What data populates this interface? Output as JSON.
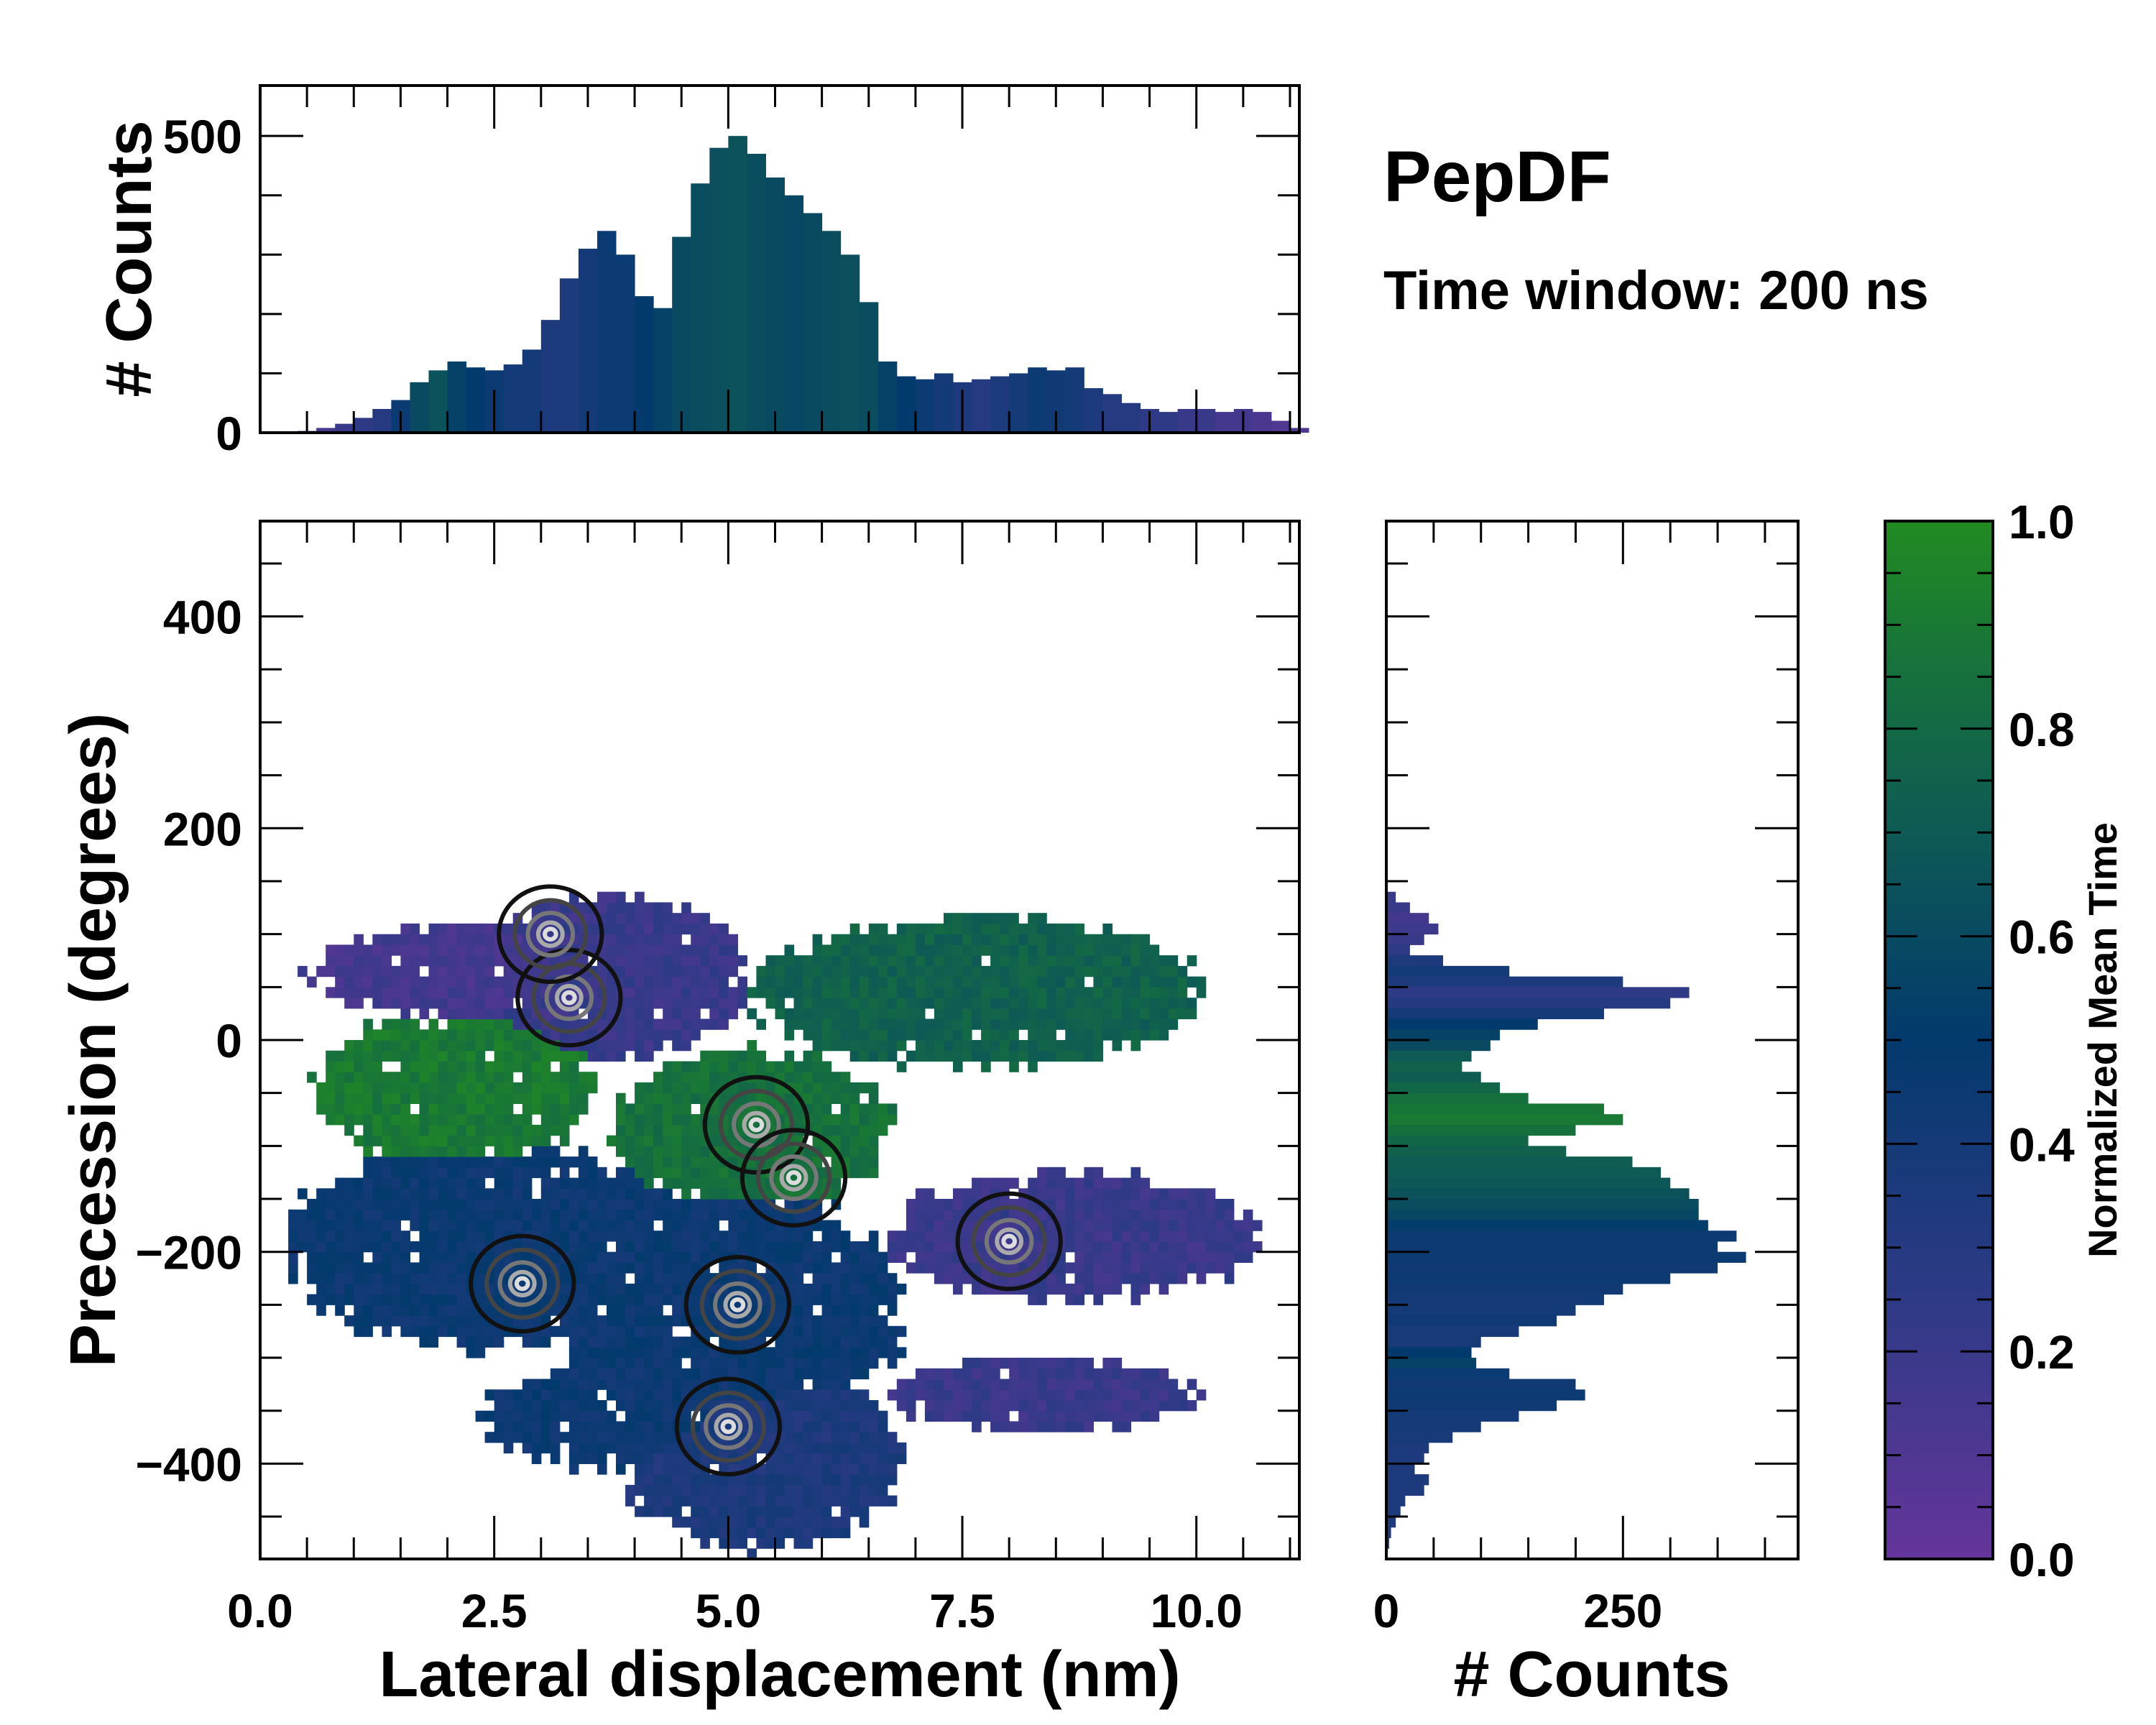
{
  "title": "PepDF",
  "subtitle": "Time window: 200 ns",
  "colors": {
    "colormap": [
      [
        0.0,
        "#65359a"
      ],
      [
        0.25,
        "#2e3a86"
      ],
      [
        0.5,
        "#033a6d"
      ],
      [
        0.7,
        "#0e5a55"
      ],
      [
        0.85,
        "#16703d"
      ],
      [
        1.0,
        "#228b22"
      ]
    ]
  },
  "chart_data": [
    {
      "type": "heatmap",
      "name": "main",
      "xlabel": "Lateral displacement (nm)",
      "ylabel": "Precession (degrees)",
      "xlim": [
        0,
        11.1
      ],
      "ylim": [
        -490,
        490
      ],
      "xticks": [
        "0.0",
        "2.5",
        "5.0",
        "7.5",
        "10.0"
      ],
      "xtick_values": [
        0,
        2.5,
        5,
        7.5,
        10
      ],
      "yticks": [
        "−400",
        "−200",
        "0",
        "200",
        "400"
      ],
      "ytick_values": [
        -400,
        -200,
        0,
        200,
        400
      ],
      "color_meaning": "Normalized Mean Time",
      "regions": [
        {
          "cx": 2.2,
          "cy": 60,
          "rx": 1.7,
          "ry": 45,
          "value": 0.15
        },
        {
          "cx": 3.7,
          "cy": 55,
          "rx": 1.5,
          "ry": 75,
          "value": 0.2
        },
        {
          "cx": 2.0,
          "cy": -50,
          "rx": 1.5,
          "ry": 75,
          "value": 0.9
        },
        {
          "cx": 7.6,
          "cy": 40,
          "rx": 2.4,
          "ry": 70,
          "value": 0.75
        },
        {
          "cx": 5.2,
          "cy": -90,
          "rx": 1.5,
          "ry": 75,
          "value": 0.85
        },
        {
          "cx": 2.4,
          "cy": -200,
          "rx": 2.2,
          "ry": 95,
          "value": 0.45
        },
        {
          "cx": 5.0,
          "cy": -260,
          "rx": 1.8,
          "ry": 120,
          "value": 0.45
        },
        {
          "cx": 8.6,
          "cy": -190,
          "rx": 2.0,
          "ry": 60,
          "value": 0.2
        },
        {
          "cx": 8.3,
          "cy": -340,
          "rx": 1.6,
          "ry": 35,
          "value": 0.2
        },
        {
          "cx": 5.3,
          "cy": -400,
          "rx": 1.5,
          "ry": 85,
          "value": 0.35
        },
        {
          "cx": 3.8,
          "cy": -360,
          "rx": 1.5,
          "ry": 50,
          "value": 0.45
        }
      ],
      "density_peaks": [
        {
          "x": 3.3,
          "y": 40
        },
        {
          "x": 3.1,
          "y": 100
        },
        {
          "x": 5.3,
          "y": -80
        },
        {
          "x": 5.7,
          "y": -130
        },
        {
          "x": 5.1,
          "y": -250
        },
        {
          "x": 5.0,
          "y": -365
        },
        {
          "x": 2.8,
          "y": -230
        },
        {
          "x": 8.0,
          "y": -190
        }
      ]
    },
    {
      "type": "bar",
      "name": "top-histogram",
      "ylabel": "# Counts",
      "xlim": [
        0,
        11.1
      ],
      "ylim": [
        0,
        585
      ],
      "yticks": [
        "0",
        "500"
      ],
      "ytick_values": [
        0,
        500
      ],
      "bin_width": 0.2,
      "x": [
        0.4,
        0.6,
        0.8,
        1.0,
        1.2,
        1.4,
        1.6,
        1.8,
        2.0,
        2.2,
        2.4,
        2.6,
        2.8,
        3.0,
        3.2,
        3.4,
        3.6,
        3.8,
        4.0,
        4.2,
        4.4,
        4.6,
        4.8,
        5.0,
        5.2,
        5.4,
        5.6,
        5.8,
        6.0,
        6.2,
        6.4,
        6.6,
        6.8,
        7.0,
        7.2,
        7.4,
        7.6,
        7.8,
        8.0,
        8.2,
        8.4,
        8.6,
        8.8,
        9.0,
        9.2,
        9.4,
        9.6,
        9.8,
        10.0,
        10.2,
        10.4,
        10.6,
        10.8,
        11.0
      ],
      "values": [
        3,
        8,
        15,
        25,
        40,
        55,
        85,
        105,
        120,
        110,
        105,
        115,
        140,
        190,
        260,
        310,
        340,
        300,
        230,
        210,
        330,
        420,
        480,
        500,
        470,
        430,
        400,
        370,
        340,
        300,
        220,
        120,
        95,
        90,
        100,
        85,
        90,
        95,
        100,
        110,
        105,
        110,
        75,
        65,
        50,
        40,
        35,
        40,
        40,
        35,
        40,
        35,
        20,
        8
      ],
      "mean_time": [
        0.1,
        0.15,
        0.2,
        0.25,
        0.3,
        0.45,
        0.6,
        0.65,
        0.55,
        0.5,
        0.45,
        0.4,
        0.4,
        0.35,
        0.35,
        0.4,
        0.45,
        0.45,
        0.5,
        0.55,
        0.6,
        0.62,
        0.64,
        0.65,
        0.62,
        0.6,
        0.58,
        0.6,
        0.62,
        0.64,
        0.62,
        0.55,
        0.5,
        0.45,
        0.4,
        0.35,
        0.3,
        0.35,
        0.4,
        0.45,
        0.42,
        0.4,
        0.35,
        0.3,
        0.3,
        0.25,
        0.25,
        0.2,
        0.2,
        0.15,
        0.15,
        0.12,
        0.1,
        0.1
      ]
    },
    {
      "type": "bar",
      "name": "right-histogram",
      "orientation": "horizontal",
      "xlabel": "# Counts",
      "xlim": [
        0,
        435
      ],
      "ylim": [
        -490,
        490
      ],
      "xticks": [
        "0",
        "250"
      ],
      "xtick_values": [
        0,
        250
      ],
      "bin_width": 10,
      "y": [
        130,
        120,
        110,
        100,
        90,
        80,
        70,
        60,
        50,
        40,
        30,
        20,
        10,
        0,
        -10,
        -20,
        -30,
        -40,
        -50,
        -60,
        -70,
        -80,
        -90,
        -100,
        -110,
        -120,
        -130,
        -140,
        -150,
        -160,
        -170,
        -180,
        -190,
        -200,
        -210,
        -220,
        -230,
        -240,
        -250,
        -260,
        -270,
        -280,
        -290,
        -300,
        -310,
        -320,
        -330,
        -340,
        -350,
        -360,
        -370,
        -380,
        -390,
        -400,
        -410,
        -420,
        -430,
        -440,
        -450,
        -460,
        -470,
        -480
      ],
      "values": [
        10,
        25,
        45,
        55,
        40,
        25,
        60,
        130,
        250,
        320,
        300,
        230,
        160,
        120,
        110,
        90,
        80,
        100,
        120,
        150,
        230,
        250,
        200,
        150,
        190,
        260,
        290,
        300,
        320,
        330,
        330,
        340,
        370,
        350,
        380,
        350,
        300,
        250,
        230,
        200,
        180,
        140,
        100,
        90,
        95,
        130,
        200,
        210,
        180,
        140,
        100,
        70,
        45,
        40,
        30,
        45,
        40,
        20,
        15,
        10,
        5,
        3
      ],
      "mean_time": [
        0.2,
        0.2,
        0.15,
        0.18,
        0.2,
        0.25,
        0.35,
        0.4,
        0.35,
        0.25,
        0.3,
        0.4,
        0.5,
        0.55,
        0.6,
        0.7,
        0.75,
        0.72,
        0.78,
        0.85,
        0.88,
        0.9,
        0.85,
        0.78,
        0.75,
        0.72,
        0.7,
        0.68,
        0.65,
        0.62,
        0.58,
        0.52,
        0.45,
        0.45,
        0.45,
        0.42,
        0.45,
        0.42,
        0.4,
        0.4,
        0.42,
        0.38,
        0.38,
        0.5,
        0.55,
        0.45,
        0.42,
        0.45,
        0.42,
        0.4,
        0.4,
        0.38,
        0.35,
        0.35,
        0.35,
        0.35,
        0.35,
        0.35,
        0.35,
        0.35,
        0.35,
        0.35
      ]
    }
  ],
  "colorbar": {
    "label": "Normalized Mean Time",
    "range": [
      0,
      1
    ],
    "ticks": [
      "0.0",
      "0.2",
      "0.4",
      "0.6",
      "0.8",
      "1.0"
    ],
    "tick_values": [
      0,
      0.2,
      0.4,
      0.6,
      0.8,
      1.0
    ]
  }
}
